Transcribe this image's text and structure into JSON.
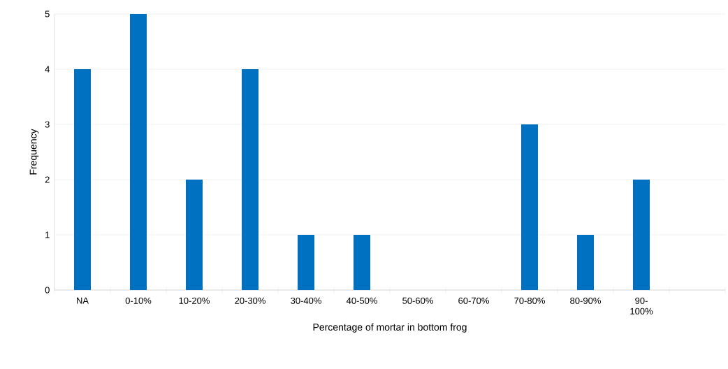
{
  "chart_data": {
    "type": "bar",
    "xlabel": "Percentage of mortar in bottom frog",
    "ylabel": "Frequency",
    "categories": [
      "NA",
      "0-10%",
      "10-20%",
      "20-30%",
      "30-40%",
      "40-50%",
      "50-60%",
      "60-70%",
      "70-80%",
      "80-90%",
      "90-100%",
      null
    ],
    "values": [
      4,
      5,
      2,
      4,
      1,
      1,
      0,
      0,
      3,
      1,
      2,
      null
    ],
    "color": "#0070c0",
    "ylim": [
      0,
      5
    ],
    "yticks": [
      0,
      1,
      2,
      3,
      4,
      5
    ],
    "grid": "y"
  }
}
